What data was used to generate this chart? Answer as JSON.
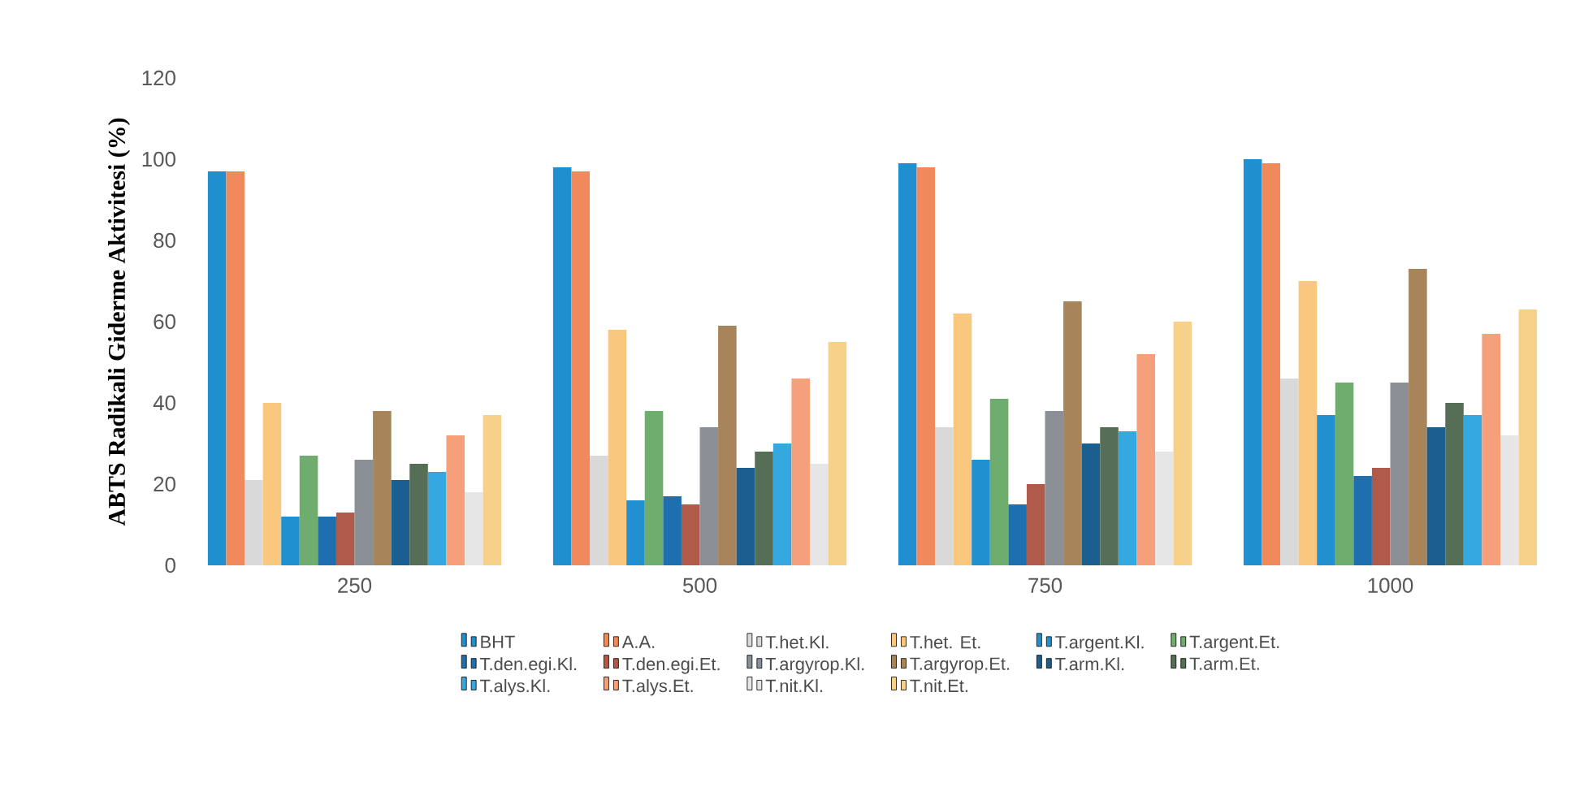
{
  "chart_data": {
    "type": "bar",
    "ylabel": "ABTS Radikali Giderme Aktivitesi (%)",
    "categories": [
      "250",
      "500",
      "750",
      "1000"
    ],
    "ylim": [
      0,
      120
    ],
    "yticks": [
      0,
      20,
      40,
      60,
      80,
      100,
      120
    ],
    "grid": false,
    "legend": "bottom",
    "series": [
      {
        "name": "BHT",
        "color": "#1f8fd0",
        "values": [
          97,
          98,
          99,
          100
        ]
      },
      {
        "name": "A.A.",
        "color": "#f08a5d",
        "values": [
          97,
          97,
          98,
          99
        ]
      },
      {
        "name": "T.het.Kl.",
        "color": "#d9d9d9",
        "values": [
          21,
          27,
          34,
          46
        ]
      },
      {
        "name": "T.het. Et.",
        "color": "#f9c77e",
        "values": [
          40,
          58,
          62,
          70
        ]
      },
      {
        "name": "T.argent.Kl.",
        "color": "#2090d0",
        "values": [
          12,
          16,
          26,
          37
        ]
      },
      {
        "name": "T.argent.Et.",
        "color": "#6fad6f",
        "values": [
          27,
          38,
          41,
          45
        ]
      },
      {
        "name": "T.den.egi.Kl.",
        "color": "#1e6fb0",
        "values": [
          12,
          17,
          15,
          22
        ]
      },
      {
        "name": "T.den.egi.Et.",
        "color": "#b05a4a",
        "values": [
          13,
          15,
          20,
          24
        ]
      },
      {
        "name": "T.argyrop.Kl.",
        "color": "#8a9096",
        "values": [
          26,
          34,
          38,
          45
        ]
      },
      {
        "name": "T.argyrop.Et.",
        "color": "#a8845a",
        "values": [
          38,
          59,
          65,
          73
        ]
      },
      {
        "name": "T.arm.Kl.",
        "color": "#1a5f90",
        "values": [
          21,
          24,
          30,
          34
        ]
      },
      {
        "name": "T.arm.Et.",
        "color": "#566e56",
        "values": [
          25,
          28,
          34,
          40
        ]
      },
      {
        "name": "T.alys.Kl.",
        "color": "#34a8e0",
        "values": [
          23,
          30,
          33,
          37
        ]
      },
      {
        "name": "T.alys.Et.",
        "color": "#f5a07a",
        "values": [
          32,
          46,
          52,
          57
        ]
      },
      {
        "name": "T.nit.Kl.",
        "color": "#e6e6e6",
        "values": [
          18,
          25,
          28,
          32
        ]
      },
      {
        "name": "T.nit.Et.",
        "color": "#f7d08a",
        "values": [
          37,
          55,
          60,
          63
        ]
      }
    ]
  }
}
